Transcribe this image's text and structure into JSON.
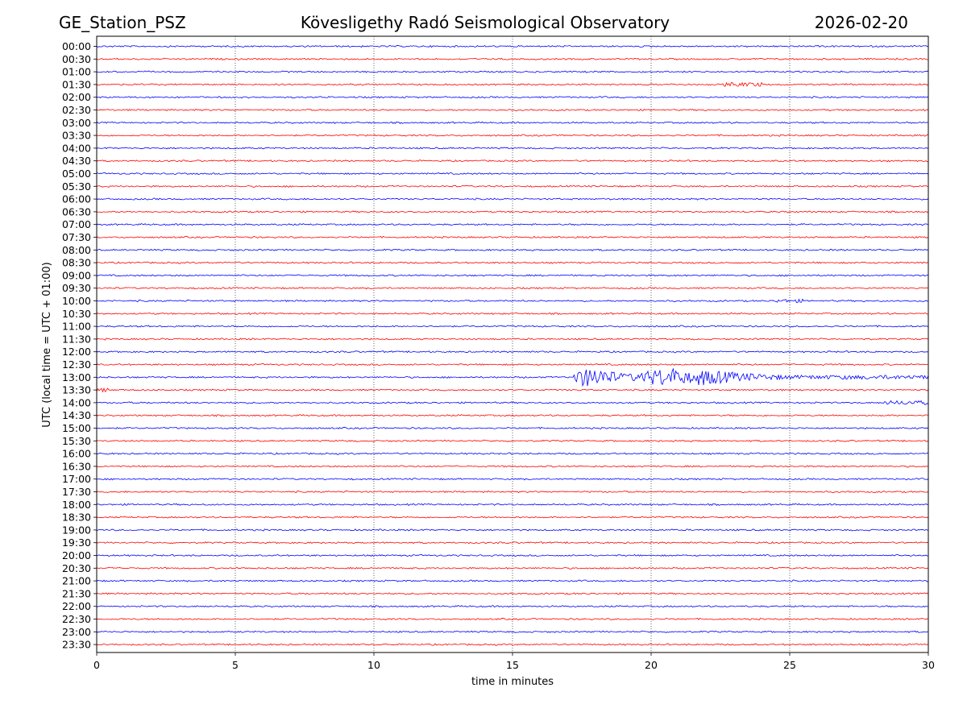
{
  "header": {
    "station": "GE_Station_PSZ",
    "observatory": "Kövesligethy Radó Seismological Observatory",
    "date": "2026-02-20"
  },
  "chart_data": {
    "type": "line",
    "subtype": "helicorder",
    "xlabel": "time in minutes",
    "ylabel": "UTC (local time = UTC + 01:00)",
    "xlim": [
      0,
      30
    ],
    "x_ticks": [
      "0",
      "5",
      "10",
      "15",
      "20",
      "25",
      "30"
    ],
    "x_tick_values": [
      0,
      5,
      10,
      15,
      20,
      25,
      30
    ],
    "x_gridlines": [
      5,
      10,
      15,
      20,
      25
    ],
    "row_labels": [
      "00:00",
      "00:30",
      "01:00",
      "01:30",
      "02:00",
      "02:30",
      "03:00",
      "03:30",
      "04:00",
      "04:30",
      "05:00",
      "05:30",
      "06:00",
      "06:30",
      "07:00",
      "07:30",
      "08:00",
      "08:30",
      "09:00",
      "09:30",
      "10:00",
      "10:30",
      "11:00",
      "11:30",
      "12:00",
      "12:30",
      "13:00",
      "13:30",
      "14:00",
      "14:30",
      "15:00",
      "15:30",
      "16:00",
      "16:30",
      "17:00",
      "17:30",
      "18:00",
      "18:30",
      "19:00",
      "19:30",
      "20:00",
      "20:30",
      "21:00",
      "21:30",
      "22:00",
      "22:30",
      "23:00",
      "23:30"
    ],
    "trace_colors": [
      "#0000ff",
      "#ff0000"
    ],
    "noise_amplitude": 0.12,
    "events": [
      {
        "row": "01:30",
        "start_min": 22.6,
        "end_min": 24.0,
        "amplitude": 0.35
      },
      {
        "row": "10:00",
        "start_min": 24.5,
        "end_min": 25.5,
        "amplitude": 0.3
      },
      {
        "row": "13:00",
        "start_min": 17.15,
        "end_min": 30.0,
        "amplitude": 1.6,
        "decay": true
      },
      {
        "row": "13:30",
        "start_min": 0.0,
        "end_min": 0.4,
        "amplitude": 0.35
      },
      {
        "row": "14:00",
        "start_min": 28.4,
        "end_min": 30.0,
        "amplitude": 0.35
      }
    ]
  }
}
